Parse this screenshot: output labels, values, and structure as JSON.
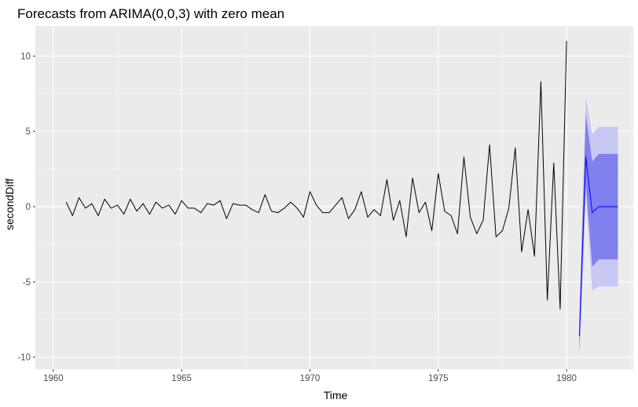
{
  "chart_data": {
    "type": "line",
    "title": "Forecasts from ARIMA(0,0,3) with zero mean",
    "xlabel": "Time",
    "ylabel": "secondDiff",
    "xlim": [
      1959.3,
      1982.6
    ],
    "ylim": [
      -10.8,
      12.0
    ],
    "x_ticks": [
      1960,
      1965,
      1970,
      1975,
      1980
    ],
    "y_ticks": [
      -10,
      -5,
      0,
      5,
      10
    ],
    "grid": true,
    "background": "#ebebeb",
    "series": [
      {
        "role": "observed",
        "color": "#000000",
        "x_start": 1960.5,
        "x_step": 0.25,
        "values": [
          0.3,
          -0.6,
          0.6,
          -0.1,
          0.2,
          -0.6,
          0.5,
          -0.1,
          0.1,
          -0.5,
          0.5,
          -0.3,
          0.2,
          -0.5,
          0.3,
          -0.1,
          0.1,
          -0.5,
          0.4,
          -0.1,
          -0.1,
          -0.4,
          0.2,
          0.1,
          0.4,
          -0.8,
          0.2,
          0.1,
          0.1,
          -0.2,
          -0.4,
          0.8,
          -0.3,
          -0.4,
          -0.1,
          0.3,
          -0.1,
          -0.7,
          1.0,
          0.1,
          -0.4,
          -0.4,
          0.1,
          0.6,
          -0.8,
          -0.2,
          1.0,
          -0.7,
          -0.2,
          -0.6,
          1.8,
          -0.9,
          0.4,
          -2.0,
          1.9,
          -0.4,
          0.3,
          -1.6,
          2.2,
          -0.3,
          -0.6,
          -1.8,
          3.3,
          -0.7,
          -1.8,
          -0.9,
          4.1,
          -2.0,
          -1.6,
          -0.1,
          3.9,
          -3.0,
          -0.2,
          -3.3,
          8.3,
          -6.2,
          2.9,
          -6.8,
          11.0
        ]
      },
      {
        "role": "forecast",
        "color": "#0000ff",
        "x": [
          1980.5,
          1980.75,
          1981.0,
          1981.25,
          1981.5,
          1981.75,
          1982.0
        ],
        "values": [
          -8.6,
          3.3,
          -0.4,
          0.0,
          0.0,
          0.0,
          0.0
        ]
      }
    ],
    "intervals": [
      {
        "level": 95,
        "color": "#c8c8f4",
        "lower": [
          -10.2,
          0.8,
          -5.6,
          -5.3,
          -5.3,
          -5.3,
          -5.3
        ],
        "upper": [
          -7.0,
          7.3,
          4.8,
          5.3,
          5.3,
          5.3,
          5.3
        ]
      },
      {
        "level": 80,
        "color": "#8080ee",
        "lower": [
          -9.6,
          1.5,
          -4.0,
          -3.5,
          -3.5,
          -3.5,
          -3.5
        ],
        "upper": [
          -7.6,
          6.1,
          3.0,
          3.5,
          3.5,
          3.5,
          3.5
        ]
      }
    ]
  }
}
